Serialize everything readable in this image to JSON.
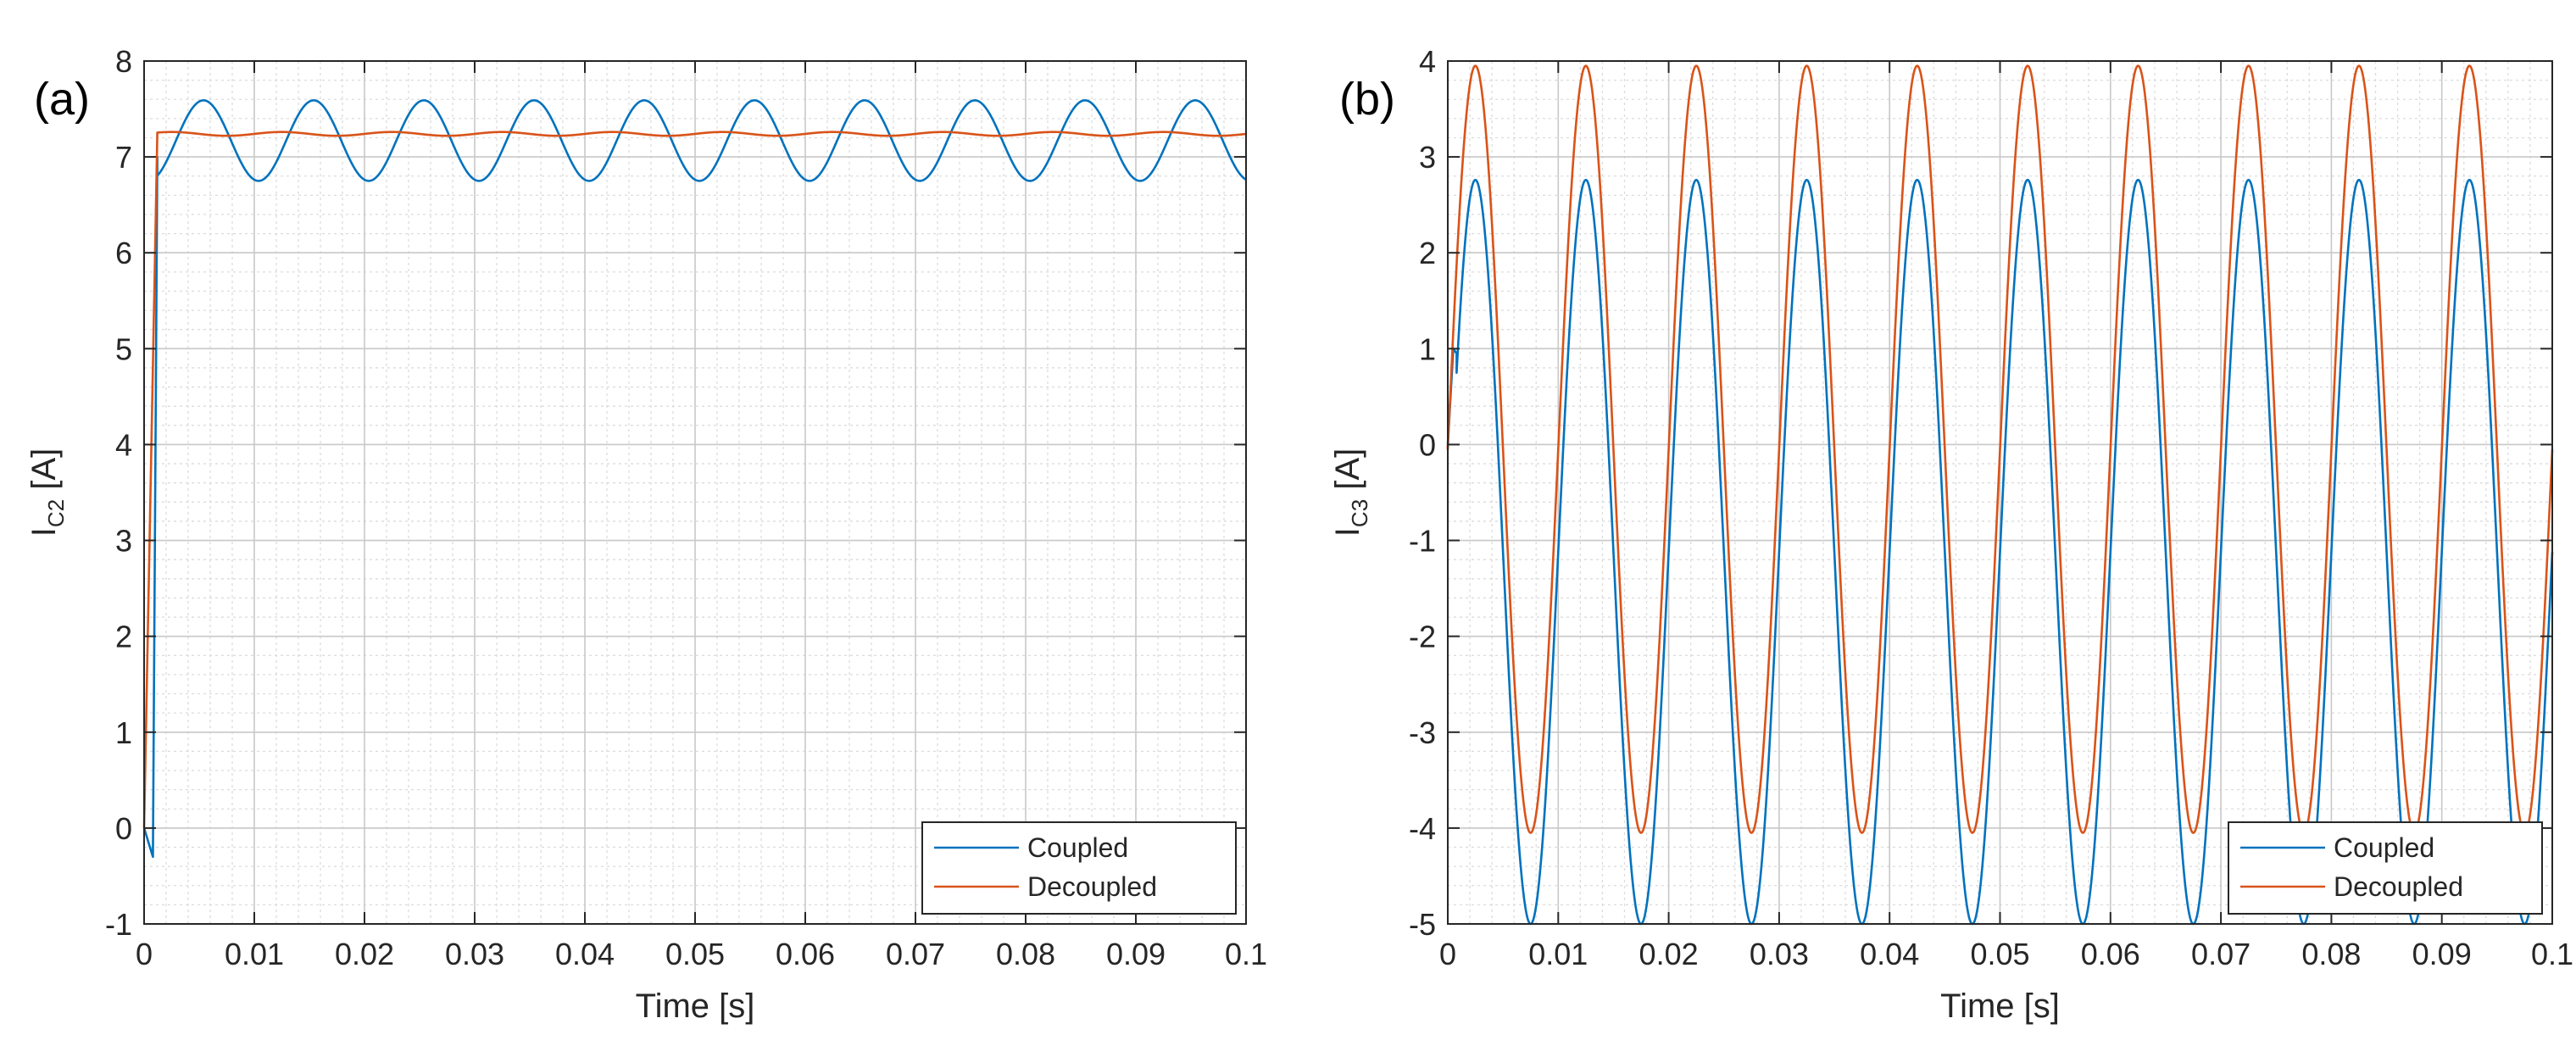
{
  "chart_data": [
    {
      "type": "line",
      "panel_label": "(a)",
      "xlabel": "Time [s]",
      "ylabel": {
        "main": "I",
        "subscript": "C2",
        "unit": " [A]"
      },
      "xlim": [
        0,
        0.1
      ],
      "ylim": [
        -1,
        8
      ],
      "xticks": [
        0,
        0.01,
        0.02,
        0.03,
        0.04,
        0.05,
        0.06,
        0.07,
        0.08,
        0.09,
        0.1
      ],
      "xtick_labels": [
        "0",
        "0.01",
        "0.02",
        "0.03",
        "0.04",
        "0.05",
        "0.06",
        "0.07",
        "0.08",
        "0.09",
        "0.1"
      ],
      "yticks": [
        -1,
        0,
        1,
        2,
        3,
        4,
        5,
        6,
        7,
        8
      ],
      "ytick_labels": [
        "-1",
        "0",
        "1",
        "2",
        "3",
        "4",
        "5",
        "6",
        "7",
        "8"
      ],
      "grid": true,
      "minor_grid": true,
      "legend_position": "bottom-right",
      "series": [
        {
          "name": "Coupled",
          "color": "#0072BD",
          "model": {
            "kind": "sine",
            "offset": 7.17,
            "amplitude": 0.42,
            "frequency_hz": 100,
            "phase_deg": -104,
            "startup": [
              [
                0,
                0
              ],
              [
                0.0008,
                -0.3
              ],
              [
                0.0012,
                7.0
              ]
            ]
          }
        },
        {
          "name": "Decoupled",
          "color": "#D95319",
          "model": {
            "kind": "sine",
            "offset": 7.24,
            "amplitude": 0.02,
            "frequency_hz": 100,
            "phase_deg": 0,
            "startup": [
              [
                0,
                0
              ],
              [
                0.0012,
                7.24
              ]
            ]
          }
        }
      ]
    },
    {
      "type": "line",
      "panel_label": "(b)",
      "xlabel": "Time [s]",
      "ylabel": {
        "main": "I",
        "subscript": "C3",
        "unit": " [A]"
      },
      "xlim": [
        0,
        0.1
      ],
      "ylim": [
        -5,
        4
      ],
      "xticks": [
        0,
        0.01,
        0.02,
        0.03,
        0.04,
        0.05,
        0.06,
        0.07,
        0.08,
        0.09,
        0.1
      ],
      "xtick_labels": [
        "0",
        "0.01",
        "0.02",
        "0.03",
        "0.04",
        "0.05",
        "0.06",
        "0.07",
        "0.08",
        "0.09",
        "0.1"
      ],
      "yticks": [
        -5,
        -4,
        -3,
        -2,
        -1,
        0,
        1,
        2,
        3,
        4
      ],
      "ytick_labels": [
        "-5",
        "-4",
        "-3",
        "-2",
        "-1",
        "0",
        "1",
        "2",
        "3",
        "4"
      ],
      "grid": true,
      "minor_grid": true,
      "legend_position": "bottom-right",
      "series": [
        {
          "name": "Coupled",
          "color": "#0072BD",
          "model": {
            "kind": "sine",
            "offset": -1.12,
            "amplitude": 3.88,
            "frequency_hz": 100,
            "phase_deg": 0,
            "startup": [
              [
                0,
                0
              ],
              [
                0.0005,
                1.0
              ],
              [
                0.0008,
                0.95
              ]
            ]
          }
        },
        {
          "name": "Decoupled",
          "color": "#D95319",
          "model": {
            "kind": "sine",
            "offset": -0.05,
            "amplitude": 4.0,
            "frequency_hz": 100,
            "phase_deg": 0,
            "startup": [
              [
                0,
                0
              ]
            ]
          }
        }
      ]
    }
  ]
}
